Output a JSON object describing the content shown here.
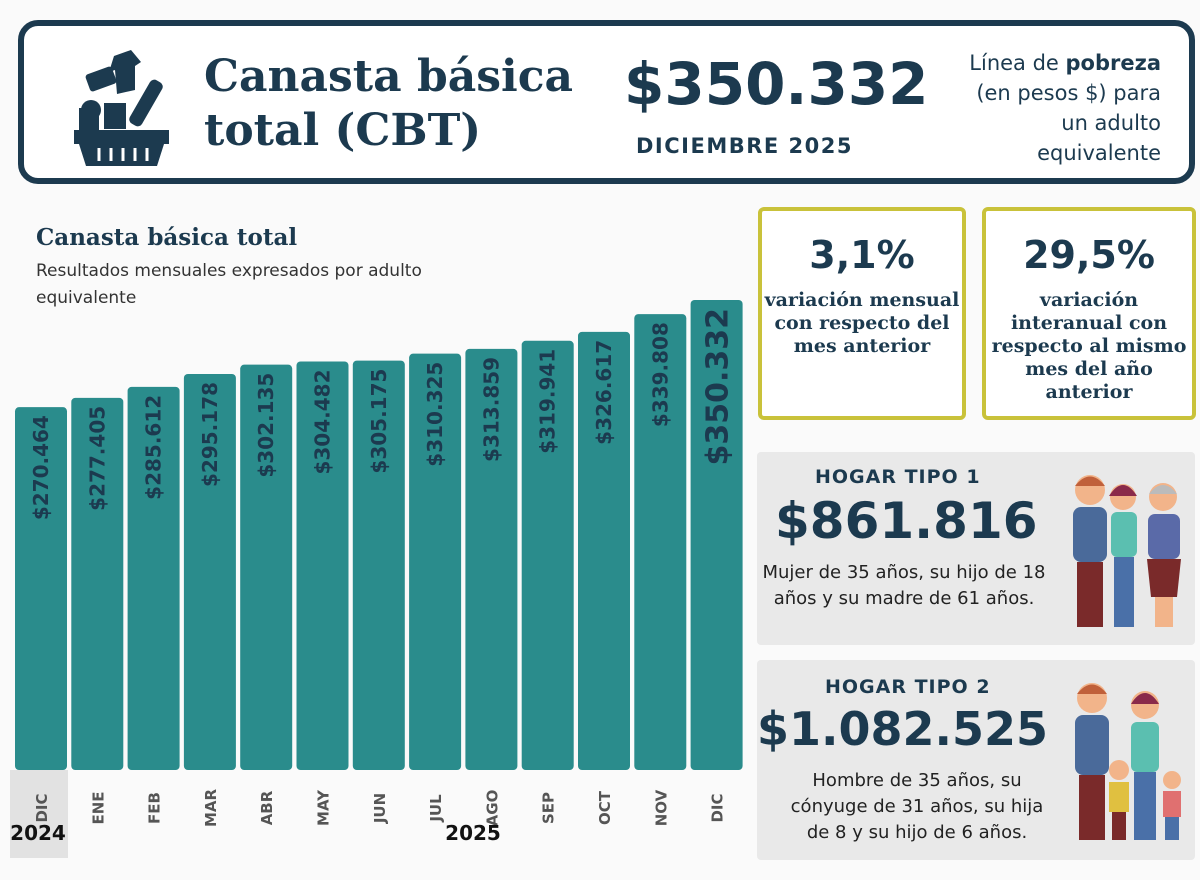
{
  "header": {
    "title_line1": "Canasta básica",
    "title_line2": "total (CBT)",
    "price": "$350.332",
    "period": "DICIEMBRE 2025",
    "poverty_pre": "Línea de ",
    "poverty_bold": "pobreza",
    "poverty_post": " (en pesos $) para un adulto equivalente",
    "icon": "shopping-basket-icon"
  },
  "chart_data": {
    "type": "bar",
    "title": "Canasta básica total",
    "subtitle": "Resultados mensuales expresados por adulto equivalente",
    "categories": [
      "DIC",
      "ENE",
      "FEB",
      "MAR",
      "ABR",
      "MAY",
      "JUN",
      "JUL",
      "AGO",
      "SEP",
      "OCT",
      "NOV",
      "DIC"
    ],
    "values": [
      270464,
      277405,
      285612,
      295178,
      302135,
      304482,
      305175,
      310325,
      313859,
      319941,
      326617,
      339808,
      350332
    ],
    "labels": [
      "$270.464",
      "$277.405",
      "$285.612",
      "$295.178",
      "$302.135",
      "$304.482",
      "$305.175",
      "$310.325",
      "$313.859",
      "$319.941",
      "$326.617",
      "$339.808",
      "$350.332"
    ],
    "year_labels": [
      "2024",
      "2025"
    ],
    "ylim": [
      0,
      350332
    ],
    "bar_color": "#2a8c8c",
    "grid": false
  },
  "stats": [
    {
      "value": "3,1%",
      "desc": "variación mensual con respecto del mes anterior"
    },
    {
      "value": "29,5%",
      "desc": "variación interanual con respecto al mismo mes del año anterior"
    }
  ],
  "hogares": [
    {
      "label": "HOGAR TIPO 1",
      "amount": "$861.816",
      "desc": "Mujer de 35 años, su hijo de 18 años y su madre de 61 años."
    },
    {
      "label": "HOGAR TIPO 2",
      "amount": "$1.082.525",
      "desc": "Hombre de 35 años, su cónyuge de 31 años, su hija de 8 y su hijo de 6 años."
    }
  ]
}
